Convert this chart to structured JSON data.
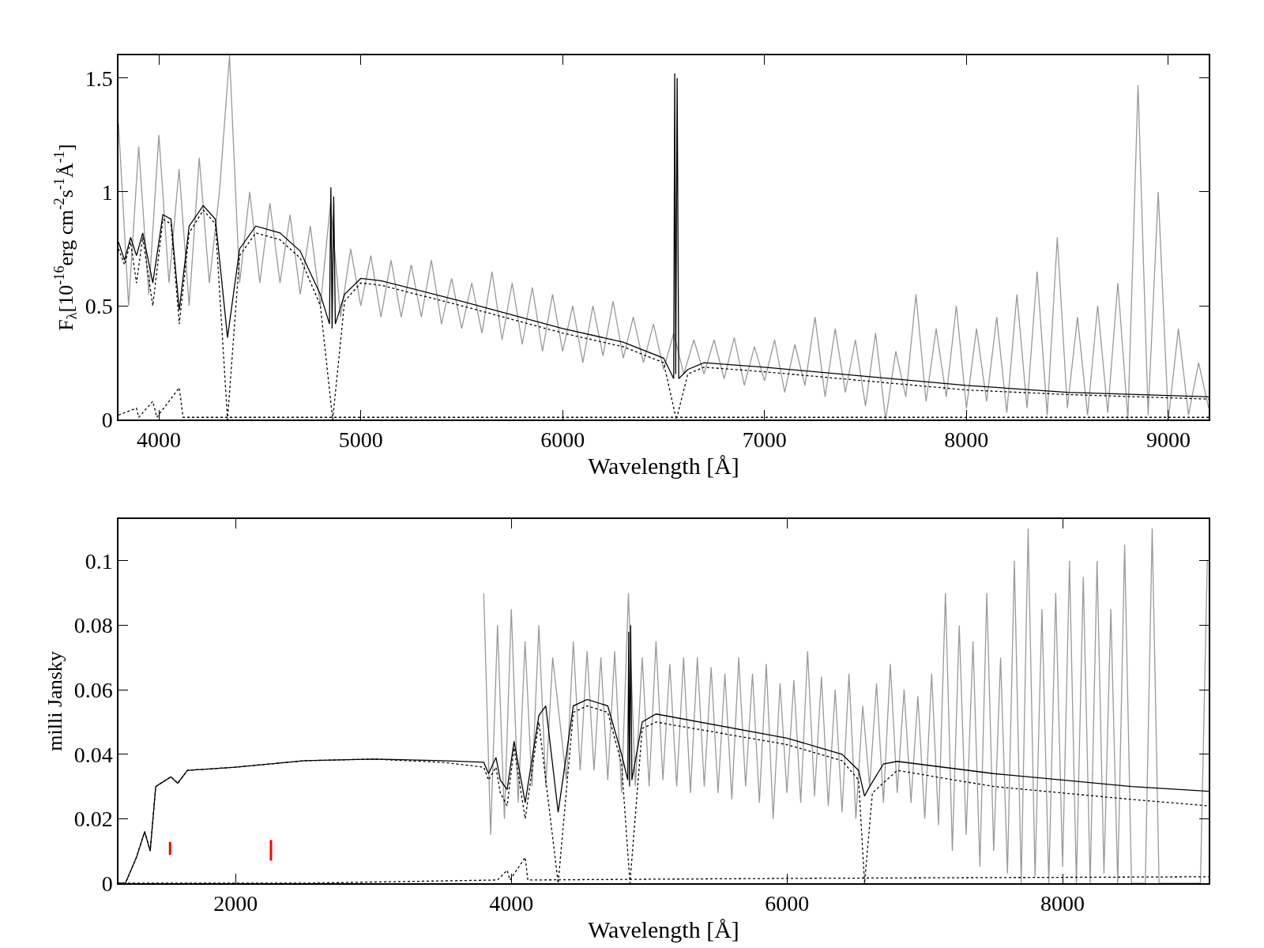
{
  "chart_data": [
    {
      "type": "line",
      "xlabel": "Wavelength [Å]",
      "ylabel": "F$_{λ}$[10$^{-16}$erg cm$^{-2}$s$^{-1}$Å$^{-1}$]",
      "xlim": [
        3800,
        9200
      ],
      "xticks": [
        4000,
        5000,
        6000,
        7000,
        8000,
        9000
      ],
      "ylim": [
        0,
        1.6
      ],
      "yticks": [
        0,
        0.5,
        1,
        1.5
      ],
      "series": [
        {
          "color": "#999999",
          "line_style": "solid",
          "x": [
            3800,
            3850,
            3900,
            3950,
            4000,
            4050,
            4100,
            4150,
            4200,
            4250,
            4300,
            4350,
            4400,
            4450,
            4500,
            4550,
            4600,
            4650,
            4700,
            4750,
            4800,
            4850,
            4900,
            4950,
            5000,
            5050,
            5100,
            5150,
            5200,
            5250,
            5300,
            5350,
            5400,
            5450,
            5500,
            5550,
            5600,
            5650,
            5700,
            5750,
            5800,
            5850,
            5900,
            5950,
            6000,
            6050,
            6100,
            6150,
            6200,
            6250,
            6300,
            6350,
            6400,
            6450,
            6500,
            6550,
            6600,
            6650,
            6700,
            6750,
            6800,
            6850,
            6900,
            6950,
            7000,
            7050,
            7100,
            7150,
            7200,
            7250,
            7300,
            7350,
            7400,
            7450,
            7500,
            7550,
            7600,
            7650,
            7700,
            7750,
            7800,
            7850,
            7900,
            7950,
            8000,
            8050,
            8100,
            8150,
            8200,
            8250,
            8300,
            8350,
            8400,
            8450,
            8500,
            8550,
            8600,
            8650,
            8700,
            8750,
            8800,
            8850,
            8900,
            8950,
            9000,
            9050,
            9100,
            9150,
            9200
          ],
          "values": [
            1.3,
            0.5,
            1.2,
            0.55,
            1.25,
            0.6,
            1.1,
            0.5,
            1.15,
            0.6,
            1.0,
            1.6,
            0.6,
            1.0,
            0.6,
            0.95,
            0.6,
            0.9,
            0.55,
            0.85,
            0.5,
            0.95,
            0.45,
            0.75,
            0.5,
            0.72,
            0.45,
            0.7,
            0.45,
            0.68,
            0.45,
            0.7,
            0.42,
            0.62,
            0.4,
            0.6,
            0.38,
            0.65,
            0.35,
            0.6,
            0.33,
            0.58,
            0.3,
            0.55,
            0.3,
            0.5,
            0.25,
            0.5,
            0.28,
            0.52,
            0.27,
            0.45,
            0.25,
            0.42,
            0.22,
            0.38,
            0.2,
            0.35,
            0.2,
            0.35,
            0.18,
            0.36,
            0.15,
            0.32,
            0.17,
            0.35,
            0.12,
            0.33,
            0.15,
            0.45,
            0.1,
            0.4,
            0.12,
            0.35,
            0.06,
            0.38,
            0.0,
            0.3,
            0.1,
            0.55,
            0.08,
            0.4,
            0.1,
            0.5,
            0.05,
            0.4,
            0.08,
            0.45,
            0.03,
            0.55,
            0.05,
            0.65,
            0.02,
            0.8,
            0.05,
            0.45,
            0.02,
            0.5,
            0.03,
            0.6,
            0.0,
            1.47,
            0.02,
            1.0,
            0.0,
            0.4,
            0.02,
            0.25,
            0.05
          ]
        },
        {
          "color": "#000000",
          "line_style": "dotted",
          "x": [
            3800,
            3830,
            3860,
            3889,
            3920,
            3970,
            4020,
            4060,
            4101,
            4150,
            4220,
            4280,
            4340,
            4400,
            4480,
            4600,
            4700,
            4800,
            4861,
            4920,
            5000,
            5100,
            5500,
            6000,
            6300,
            6500,
            6563,
            6620,
            6700,
            7000,
            7500,
            8000,
            8500,
            9200
          ],
          "values": [
            0.75,
            0.68,
            0.78,
            0.6,
            0.8,
            0.5,
            0.88,
            0.86,
            0.42,
            0.82,
            0.92,
            0.86,
            0.0,
            0.72,
            0.82,
            0.79,
            0.71,
            0.5,
            0.0,
            0.52,
            0.6,
            0.59,
            0.5,
            0.38,
            0.32,
            0.25,
            0.0,
            0.2,
            0.23,
            0.21,
            0.17,
            0.13,
            0.11,
            0.09
          ]
        },
        {
          "color": "#000000",
          "line_style": "dotted",
          "x": [
            3800,
            3889,
            3900,
            3970,
            3990,
            4101,
            4120,
            9200
          ],
          "values": [
            0.02,
            0.05,
            0.01,
            0.08,
            0.01,
            0.14,
            0.01,
            0.01
          ]
        },
        {
          "color": "#000000",
          "line_style": "solid",
          "x": [
            3800,
            3830,
            3860,
            3889,
            3920,
            3970,
            4020,
            4060,
            4101,
            4150,
            4220,
            4280,
            4340,
            4400,
            4480,
            4600,
            4700,
            4800,
            4845,
            4852,
            4858,
            4866,
            4874,
            4920,
            5000,
            5100,
            5500,
            6000,
            6300,
            6500,
            6550,
            6555,
            6560,
            6567,
            6575,
            6620,
            6700,
            7000,
            7500,
            8000,
            8500,
            9200
          ],
          "values": [
            0.78,
            0.7,
            0.8,
            0.72,
            0.82,
            0.6,
            0.9,
            0.88,
            0.48,
            0.85,
            0.94,
            0.88,
            0.36,
            0.75,
            0.85,
            0.82,
            0.74,
            0.55,
            0.42,
            1.02,
            0.4,
            0.98,
            0.42,
            0.55,
            0.62,
            0.61,
            0.52,
            0.4,
            0.34,
            0.27,
            0.18,
            1.52,
            0.2,
            1.5,
            0.18,
            0.22,
            0.25,
            0.23,
            0.19,
            0.15,
            0.12,
            0.1
          ]
        }
      ]
    },
    {
      "type": "line",
      "xlabel": "Wavelength [Å]",
      "ylabel": "milli Jansky",
      "xlim": [
        1150,
        9060
      ],
      "xticks": [
        2000,
        4000,
        6000,
        8000
      ],
      "ylim": [
        0,
        0.113
      ],
      "yticks": [
        0,
        0.02,
        0.04,
        0.06,
        0.08,
        0.1
      ],
      "series": [
        {
          "color": "#999999",
          "line_style": "solid",
          "x": [
            3800,
            3850,
            3900,
            3950,
            4000,
            4050,
            4100,
            4150,
            4200,
            4250,
            4300,
            4350,
            4400,
            4450,
            4500,
            4550,
            4600,
            4650,
            4700,
            4750,
            4800,
            4850,
            4900,
            4950,
            5000,
            5050,
            5100,
            5150,
            5200,
            5250,
            5300,
            5350,
            5400,
            5450,
            5500,
            5550,
            5600,
            5650,
            5700,
            5750,
            5800,
            5850,
            5900,
            5950,
            6000,
            6050,
            6100,
            6150,
            6200,
            6250,
            6300,
            6350,
            6400,
            6450,
            6500,
            6550,
            6600,
            6650,
            6700,
            6750,
            6800,
            6850,
            6900,
            6950,
            7000,
            7050,
            7100,
            7150,
            7200,
            7250,
            7300,
            7350,
            7400,
            7450,
            7500,
            7550,
            7600,
            7650,
            7700,
            7750,
            7800,
            7850,
            7900,
            7950,
            8000,
            8050,
            8100,
            8150,
            8200,
            8250,
            8300,
            8350,
            8400,
            8450,
            8500,
            8550,
            8600,
            8650,
            8700,
            8750,
            8800,
            8850,
            8900,
            8950,
            9000,
            9050
          ],
          "values": [
            0.09,
            0.015,
            0.08,
            0.02,
            0.085,
            0.025,
            0.075,
            0.03,
            0.08,
            0.03,
            0.07,
            null,
            0.032,
            0.075,
            0.035,
            0.072,
            0.035,
            0.07,
            0.032,
            0.072,
            0.028,
            0.09,
            0.03,
            0.07,
            0.03,
            0.075,
            0.032,
            0.068,
            0.03,
            0.07,
            0.028,
            0.07,
            0.03,
            0.067,
            0.028,
            0.065,
            0.026,
            0.07,
            0.03,
            0.065,
            0.025,
            0.068,
            0.02,
            0.062,
            0.028,
            0.063,
            0.025,
            0.072,
            0.027,
            0.064,
            0.024,
            0.06,
            0.022,
            0.065,
            0.02,
            0.055,
            0.03,
            0.062,
            0.025,
            0.068,
            0.028,
            0.06,
            0.025,
            0.058,
            0.02,
            0.065,
            0.018,
            0.09,
            0.01,
            0.08,
            0.015,
            0.075,
            0.005,
            0.09,
            0.01,
            0.07,
            0.003,
            0.1,
            0.0,
            0.11,
            0.002,
            0.085,
            0.0,
            0.09,
            0.005,
            0.1,
            0.0,
            0.095,
            0.0,
            0.1,
            0.003,
            0.085,
            0.0,
            0.105,
            0.0,
            null,
            0.0,
            0.11,
            0.0,
            null,
            0.0,
            null,
            0.0,
            null,
            0.0,
            0.1
          ]
        },
        {
          "color": "#000000",
          "line_style": "dotted",
          "x": [
            1150,
            1200,
            1280,
            1340,
            1380,
            1420,
            1530,
            1580,
            1650,
            2000,
            2500,
            3000,
            3500,
            3800,
            3835,
            3889,
            3920,
            3970,
            4020,
            4101,
            4200,
            4340,
            4450,
            4550,
            4700,
            4800,
            4861,
            4950,
            5050,
            6000,
            6400,
            6520,
            6563,
            6620,
            6800,
            7500,
            8000,
            8500,
            9060
          ],
          "values": [
            0.0,
            0.0,
            0.008,
            0.016,
            0.01,
            0.03,
            0.033,
            0.031,
            0.035,
            0.036,
            0.038,
            0.0385,
            0.0375,
            0.036,
            0.032,
            0.036,
            0.028,
            0.024,
            0.042,
            0.02,
            0.05,
            0.0,
            0.053,
            0.055,
            0.053,
            0.037,
            0.0,
            0.048,
            0.05,
            0.043,
            0.038,
            0.032,
            0.0,
            0.028,
            0.035,
            0.03,
            0.028,
            0.026,
            0.024
          ]
        },
        {
          "color": "#000000",
          "line_style": "dotted",
          "x": [
            1150,
            2500,
            3900,
            3970,
            3990,
            4101,
            4120,
            6000,
            9060
          ],
          "values": [
            0.0,
            0.0,
            0.001,
            0.004,
            0.001,
            0.008,
            0.001,
            0.0015,
            0.002
          ]
        },
        {
          "color": "#000000",
          "line_style": "solid",
          "x": [
            1150,
            1200,
            1280,
            1340,
            1380,
            1420,
            1530,
            1580,
            1650,
            2000,
            2500,
            3000,
            3500,
            3800,
            3835,
            3889,
            3920,
            3970,
            4020,
            4101,
            4200,
            4250,
            4340,
            4450,
            4550,
            4700,
            4800,
            4845,
            4852,
            4858,
            4866,
            4875,
            4950,
            5050,
            6000,
            6400,
            6520,
            6557,
            6563,
            6570,
            6600,
            6700,
            6800,
            7500,
            8000,
            8500,
            9060
          ],
          "values": [
            0.0,
            0.0,
            0.008,
            0.016,
            0.01,
            0.03,
            0.033,
            0.031,
            0.035,
            0.036,
            0.038,
            0.0385,
            0.038,
            0.0375,
            0.034,
            0.039,
            0.032,
            0.029,
            0.044,
            0.025,
            0.052,
            0.055,
            0.022,
            0.055,
            0.057,
            0.055,
            0.04,
            0.032,
            0.078,
            0.03,
            0.08,
            0.032,
            0.05,
            0.0525,
            0.045,
            0.04,
            0.035,
            null,
            0.027,
            null,
            0.03,
            0.037,
            0.0378,
            0.034,
            0.032,
            0.03,
            0.0285
          ]
        },
        {
          "color": "#ff0000",
          "line_style": "solid",
          "x": [
            1524,
            1524
          ],
          "values": [
            0.0088,
            0.0128
          ]
        },
        {
          "color": "#ff0000",
          "line_style": "solid",
          "x": [
            2256,
            2256
          ],
          "values": [
            0.007,
            0.0134
          ]
        }
      ]
    }
  ]
}
